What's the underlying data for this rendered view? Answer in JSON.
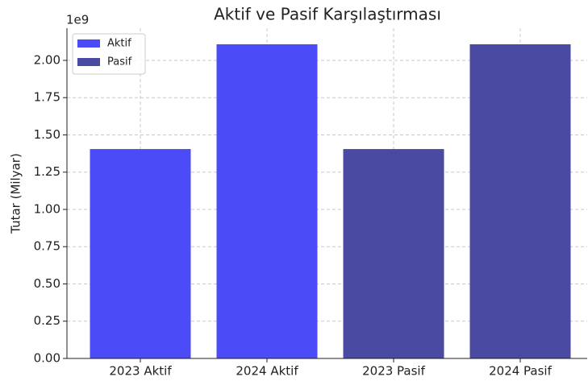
{
  "chart_data": {
    "type": "bar",
    "title": "Aktif ve Pasif Karşılaştırması",
    "y_label": "Tutar (Milyar)",
    "offset_label": "1e9",
    "categories": [
      "2023 Aktif",
      "2024 Aktif",
      "2023 Pasif",
      "2024 Pasif"
    ],
    "series": [
      {
        "name": "Aktif",
        "color": "#4b4bf7",
        "values": [
          1.405,
          2.108,
          null,
          null
        ]
      },
      {
        "name": "Pasif",
        "color": "#4a4aa2",
        "values": [
          null,
          null,
          1.405,
          2.108
        ]
      }
    ],
    "ylim": [
      0,
      2.216
    ],
    "yticks": [
      {
        "value": 0,
        "label": "0.00"
      },
      {
        "value": 0.25,
        "label": "0.25"
      },
      {
        "value": 0.5,
        "label": "0.50"
      },
      {
        "value": 0.75,
        "label": "0.75"
      },
      {
        "value": 1,
        "label": "1.00"
      },
      {
        "value": 1.25,
        "label": "1.25"
      },
      {
        "value": 1.5,
        "label": "1.50"
      },
      {
        "value": 1.75,
        "label": "1.75"
      },
      {
        "value": 2,
        "label": "2.00"
      }
    ],
    "grid": true,
    "legend": "upper left"
  }
}
